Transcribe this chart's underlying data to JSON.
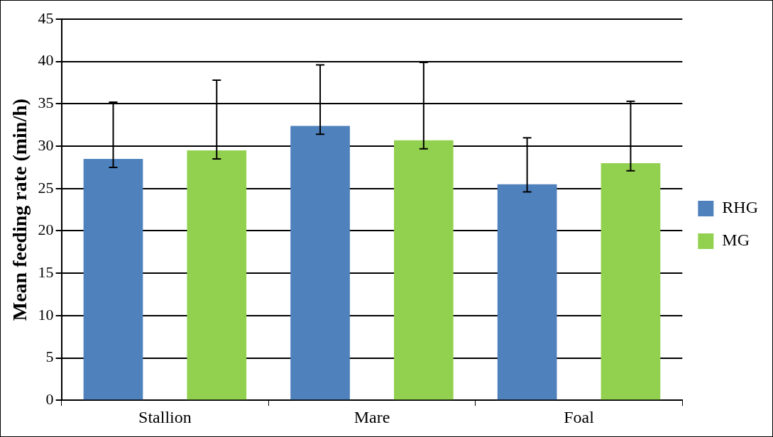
{
  "chart_data": {
    "type": "bar",
    "ylabel": "Mean feeding rate (min/h)",
    "categories": [
      "Stallion",
      "Mare",
      "Foal"
    ],
    "series": [
      {
        "name": "RHG",
        "color": "#4f81bd",
        "values": [
          28.5,
          32.4,
          25.5
        ],
        "errors": [
          [
            27.5,
            35.2
          ],
          [
            31.4,
            39.6
          ],
          [
            24.6,
            31.0
          ]
        ]
      },
      {
        "name": "MG",
        "color": "#92d050",
        "values": [
          29.5,
          30.7,
          28.0
        ],
        "errors": [
          [
            28.5,
            37.8
          ],
          [
            29.7,
            39.9
          ],
          [
            27.1,
            35.3
          ]
        ]
      }
    ],
    "ylim": [
      0,
      45
    ],
    "yticks": [
      0,
      5,
      10,
      15,
      20,
      25,
      30,
      35,
      40,
      45
    ],
    "grid": "y",
    "legend": "right"
  }
}
